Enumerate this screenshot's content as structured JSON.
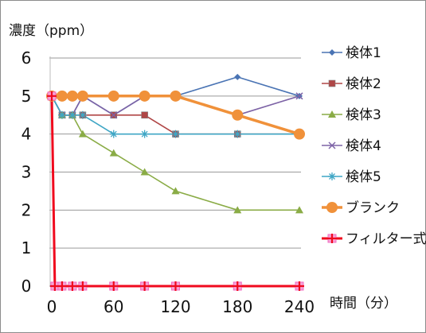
{
  "chart_data": {
    "type": "line",
    "title": "",
    "xlabel": "時間（分）",
    "ylabel": "濃度（ppm）",
    "xlim": [
      0,
      240
    ],
    "ylim": [
      0,
      6
    ],
    "x_ticks": [
      "0",
      "60",
      "120",
      "180",
      "240"
    ],
    "y_ticks": [
      "0",
      "1",
      "2",
      "3",
      "4",
      "5",
      "6"
    ],
    "gridlines": "horizontal",
    "legend_position": "right",
    "series": [
      {
        "name": "検体1",
        "color": "#4a74b4",
        "marker": "diamond",
        "x": [
          0,
          10,
          20,
          30,
          60,
          90,
          120,
          180,
          240
        ],
        "y": [
          5,
          4.5,
          4.5,
          5,
          4.5,
          5,
          5,
          5.5,
          5
        ]
      },
      {
        "name": "検体2",
        "color": "#b04646",
        "marker": "square",
        "x": [
          0,
          10,
          20,
          30,
          60,
          90,
          120,
          180,
          240
        ],
        "y": [
          5,
          4.5,
          4.5,
          4.5,
          4.5,
          4.5,
          4,
          4,
          4
        ]
      },
      {
        "name": "検体3",
        "color": "#8aac46",
        "marker": "triangle",
        "x": [
          0,
          10,
          20,
          30,
          60,
          90,
          120,
          180,
          240
        ],
        "y": [
          5,
          4.5,
          4.5,
          4,
          3.5,
          3,
          2.5,
          2,
          2
        ]
      },
      {
        "name": "検体4",
        "color": "#7d63a6",
        "marker": "cross",
        "x": [
          0,
          10,
          20,
          30,
          60,
          90,
          120,
          180,
          240
        ],
        "y": [
          5,
          4.5,
          4.5,
          5,
          4.5,
          5,
          5,
          4.5,
          5
        ]
      },
      {
        "name": "検体5",
        "color": "#3fa6c5",
        "marker": "star",
        "x": [
          0,
          10,
          20,
          30,
          60,
          90,
          120,
          180,
          240
        ],
        "y": [
          5,
          4.5,
          4.5,
          4.5,
          4,
          4,
          4,
          4,
          4
        ]
      },
      {
        "name": "ブランク",
        "color": "#f0913a",
        "marker": "circle",
        "x": [
          0,
          10,
          20,
          30,
          60,
          90,
          120,
          180,
          240
        ],
        "y": [
          5,
          5,
          5,
          5,
          5,
          5,
          5,
          4.5,
          4
        ]
      },
      {
        "name": "フィルター式",
        "color": "#f00a1e",
        "marker": "plus-pink",
        "x": [
          0,
          3,
          10,
          20,
          30,
          60,
          90,
          120,
          180,
          240
        ],
        "y": [
          5,
          0,
          0,
          0,
          0,
          0,
          0,
          0,
          0,
          0
        ]
      }
    ]
  }
}
